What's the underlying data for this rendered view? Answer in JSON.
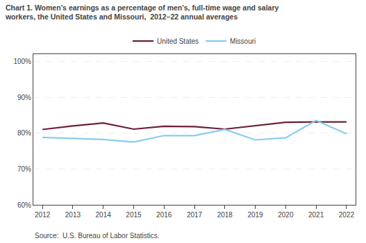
{
  "chart_data": {
    "type": "line",
    "title": "Chart 1. Women's earnings as a percentage of men's, full-time wage and salary",
    "subtitle": "workers, the United States and Missouri,  2012–22 annual averages",
    "x": [
      2012,
      2013,
      2014,
      2015,
      2016,
      2017,
      2018,
      2019,
      2020,
      2021,
      2022
    ],
    "series": [
      {
        "name": "United States",
        "color": "#6B1F3B",
        "values": [
          81.0,
          82.0,
          82.8,
          81.1,
          81.9,
          81.8,
          81.1,
          82.0,
          83.0,
          83.1,
          83.1
        ]
      },
      {
        "name": "Missouri",
        "color": "#87CEEB",
        "values": [
          78.8,
          78.5,
          78.2,
          77.5,
          79.3,
          79.3,
          81.0,
          78.1,
          78.7,
          83.5,
          79.8
        ]
      }
    ],
    "xlim": [
      2011.7,
      2022.3
    ],
    "xticks": [
      2012,
      2013,
      2014,
      2015,
      2016,
      2017,
      2018,
      2019,
      2020,
      2021,
      2022
    ],
    "ylim": [
      60,
      102
    ],
    "yticks": [
      {
        "value": 60,
        "label": "60%"
      },
      {
        "value": 70,
        "label": "70%"
      },
      {
        "value": 80,
        "label": "80%"
      },
      {
        "value": 90,
        "label": "90%"
      },
      {
        "value": 100,
        "label": "100%"
      }
    ],
    "grid": true,
    "legend": "top",
    "annotations": [
      "Source:  U.S. Bureau of Labor Statistics."
    ]
  }
}
